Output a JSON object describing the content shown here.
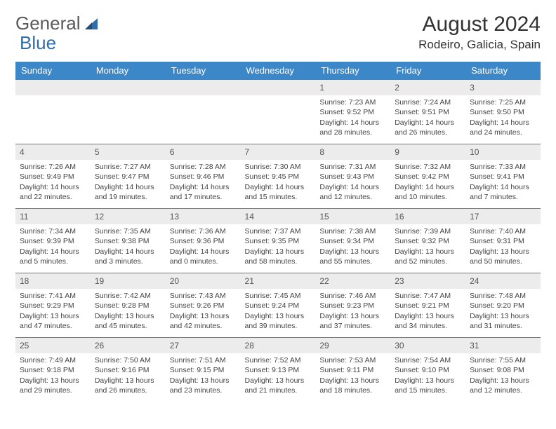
{
  "logo": {
    "text1": "General",
    "text2": "Blue"
  },
  "title": "August 2024",
  "location": "Rodeiro, Galicia, Spain",
  "header_bg": "#3b87c8",
  "header_fg": "#ffffff",
  "daynum_bg": "#ececec",
  "border_color": "#3b87c8",
  "cell_font_size": 10.5,
  "weekdays": [
    "Sunday",
    "Monday",
    "Tuesday",
    "Wednesday",
    "Thursday",
    "Friday",
    "Saturday"
  ],
  "weeks": [
    [
      {
        "day": "",
        "sunrise": "",
        "sunset": "",
        "daylight": ""
      },
      {
        "day": "",
        "sunrise": "",
        "sunset": "",
        "daylight": ""
      },
      {
        "day": "",
        "sunrise": "",
        "sunset": "",
        "daylight": ""
      },
      {
        "day": "",
        "sunrise": "",
        "sunset": "",
        "daylight": ""
      },
      {
        "day": "1",
        "sunrise": "Sunrise: 7:23 AM",
        "sunset": "Sunset: 9:52 PM",
        "daylight": "Daylight: 14 hours and 28 minutes."
      },
      {
        "day": "2",
        "sunrise": "Sunrise: 7:24 AM",
        "sunset": "Sunset: 9:51 PM",
        "daylight": "Daylight: 14 hours and 26 minutes."
      },
      {
        "day": "3",
        "sunrise": "Sunrise: 7:25 AM",
        "sunset": "Sunset: 9:50 PM",
        "daylight": "Daylight: 14 hours and 24 minutes."
      }
    ],
    [
      {
        "day": "4",
        "sunrise": "Sunrise: 7:26 AM",
        "sunset": "Sunset: 9:49 PM",
        "daylight": "Daylight: 14 hours and 22 minutes."
      },
      {
        "day": "5",
        "sunrise": "Sunrise: 7:27 AM",
        "sunset": "Sunset: 9:47 PM",
        "daylight": "Daylight: 14 hours and 19 minutes."
      },
      {
        "day": "6",
        "sunrise": "Sunrise: 7:28 AM",
        "sunset": "Sunset: 9:46 PM",
        "daylight": "Daylight: 14 hours and 17 minutes."
      },
      {
        "day": "7",
        "sunrise": "Sunrise: 7:30 AM",
        "sunset": "Sunset: 9:45 PM",
        "daylight": "Daylight: 14 hours and 15 minutes."
      },
      {
        "day": "8",
        "sunrise": "Sunrise: 7:31 AM",
        "sunset": "Sunset: 9:43 PM",
        "daylight": "Daylight: 14 hours and 12 minutes."
      },
      {
        "day": "9",
        "sunrise": "Sunrise: 7:32 AM",
        "sunset": "Sunset: 9:42 PM",
        "daylight": "Daylight: 14 hours and 10 minutes."
      },
      {
        "day": "10",
        "sunrise": "Sunrise: 7:33 AM",
        "sunset": "Sunset: 9:41 PM",
        "daylight": "Daylight: 14 hours and 7 minutes."
      }
    ],
    [
      {
        "day": "11",
        "sunrise": "Sunrise: 7:34 AM",
        "sunset": "Sunset: 9:39 PM",
        "daylight": "Daylight: 14 hours and 5 minutes."
      },
      {
        "day": "12",
        "sunrise": "Sunrise: 7:35 AM",
        "sunset": "Sunset: 9:38 PM",
        "daylight": "Daylight: 14 hours and 3 minutes."
      },
      {
        "day": "13",
        "sunrise": "Sunrise: 7:36 AM",
        "sunset": "Sunset: 9:36 PM",
        "daylight": "Daylight: 14 hours and 0 minutes."
      },
      {
        "day": "14",
        "sunrise": "Sunrise: 7:37 AM",
        "sunset": "Sunset: 9:35 PM",
        "daylight": "Daylight: 13 hours and 58 minutes."
      },
      {
        "day": "15",
        "sunrise": "Sunrise: 7:38 AM",
        "sunset": "Sunset: 9:34 PM",
        "daylight": "Daylight: 13 hours and 55 minutes."
      },
      {
        "day": "16",
        "sunrise": "Sunrise: 7:39 AM",
        "sunset": "Sunset: 9:32 PM",
        "daylight": "Daylight: 13 hours and 52 minutes."
      },
      {
        "day": "17",
        "sunrise": "Sunrise: 7:40 AM",
        "sunset": "Sunset: 9:31 PM",
        "daylight": "Daylight: 13 hours and 50 minutes."
      }
    ],
    [
      {
        "day": "18",
        "sunrise": "Sunrise: 7:41 AM",
        "sunset": "Sunset: 9:29 PM",
        "daylight": "Daylight: 13 hours and 47 minutes."
      },
      {
        "day": "19",
        "sunrise": "Sunrise: 7:42 AM",
        "sunset": "Sunset: 9:28 PM",
        "daylight": "Daylight: 13 hours and 45 minutes."
      },
      {
        "day": "20",
        "sunrise": "Sunrise: 7:43 AM",
        "sunset": "Sunset: 9:26 PM",
        "daylight": "Daylight: 13 hours and 42 minutes."
      },
      {
        "day": "21",
        "sunrise": "Sunrise: 7:45 AM",
        "sunset": "Sunset: 9:24 PM",
        "daylight": "Daylight: 13 hours and 39 minutes."
      },
      {
        "day": "22",
        "sunrise": "Sunrise: 7:46 AM",
        "sunset": "Sunset: 9:23 PM",
        "daylight": "Daylight: 13 hours and 37 minutes."
      },
      {
        "day": "23",
        "sunrise": "Sunrise: 7:47 AM",
        "sunset": "Sunset: 9:21 PM",
        "daylight": "Daylight: 13 hours and 34 minutes."
      },
      {
        "day": "24",
        "sunrise": "Sunrise: 7:48 AM",
        "sunset": "Sunset: 9:20 PM",
        "daylight": "Daylight: 13 hours and 31 minutes."
      }
    ],
    [
      {
        "day": "25",
        "sunrise": "Sunrise: 7:49 AM",
        "sunset": "Sunset: 9:18 PM",
        "daylight": "Daylight: 13 hours and 29 minutes."
      },
      {
        "day": "26",
        "sunrise": "Sunrise: 7:50 AM",
        "sunset": "Sunset: 9:16 PM",
        "daylight": "Daylight: 13 hours and 26 minutes."
      },
      {
        "day": "27",
        "sunrise": "Sunrise: 7:51 AM",
        "sunset": "Sunset: 9:15 PM",
        "daylight": "Daylight: 13 hours and 23 minutes."
      },
      {
        "day": "28",
        "sunrise": "Sunrise: 7:52 AM",
        "sunset": "Sunset: 9:13 PM",
        "daylight": "Daylight: 13 hours and 21 minutes."
      },
      {
        "day": "29",
        "sunrise": "Sunrise: 7:53 AM",
        "sunset": "Sunset: 9:11 PM",
        "daylight": "Daylight: 13 hours and 18 minutes."
      },
      {
        "day": "30",
        "sunrise": "Sunrise: 7:54 AM",
        "sunset": "Sunset: 9:10 PM",
        "daylight": "Daylight: 13 hours and 15 minutes."
      },
      {
        "day": "31",
        "sunrise": "Sunrise: 7:55 AM",
        "sunset": "Sunset: 9:08 PM",
        "daylight": "Daylight: 13 hours and 12 minutes."
      }
    ]
  ]
}
